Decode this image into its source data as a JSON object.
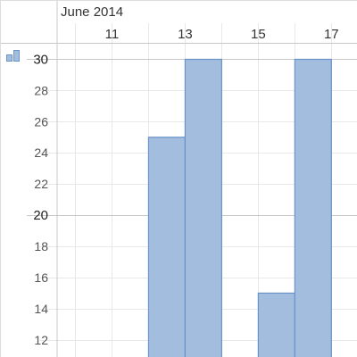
{
  "chart_data": {
    "type": "bar",
    "period_label": "June 2014",
    "x_ticks": [
      11,
      13,
      15,
      17
    ],
    "x_range": [
      9.5,
      17.7
    ],
    "y_range": [
      10.9,
      31.0
    ],
    "y_ticks": [
      12,
      14,
      16,
      18,
      20,
      22,
      24,
      26,
      28,
      30
    ],
    "y_major_ticks": [
      20,
      30
    ],
    "x_minor_gridlines": [
      10,
      11,
      12,
      13,
      14,
      15,
      16,
      17
    ],
    "bars": [
      {
        "x_start": 12,
        "x_end": 13,
        "value": 25
      },
      {
        "x_start": 13,
        "x_end": 14,
        "value": 30
      },
      {
        "x_start": 15,
        "x_end": 16,
        "value": 15
      },
      {
        "x_start": 16,
        "x_end": 17,
        "value": 30
      }
    ],
    "colors": {
      "bar_fill": "#a3bddf",
      "bar_stroke": "#6a93c8",
      "grid_minor": "#e8e8e8",
      "grid_major": "#c8c8c8",
      "tick_text": "#333333"
    },
    "grid": true,
    "legend": "none"
  },
  "toolbar": {
    "chart_icon": "bar-chart-icon"
  }
}
